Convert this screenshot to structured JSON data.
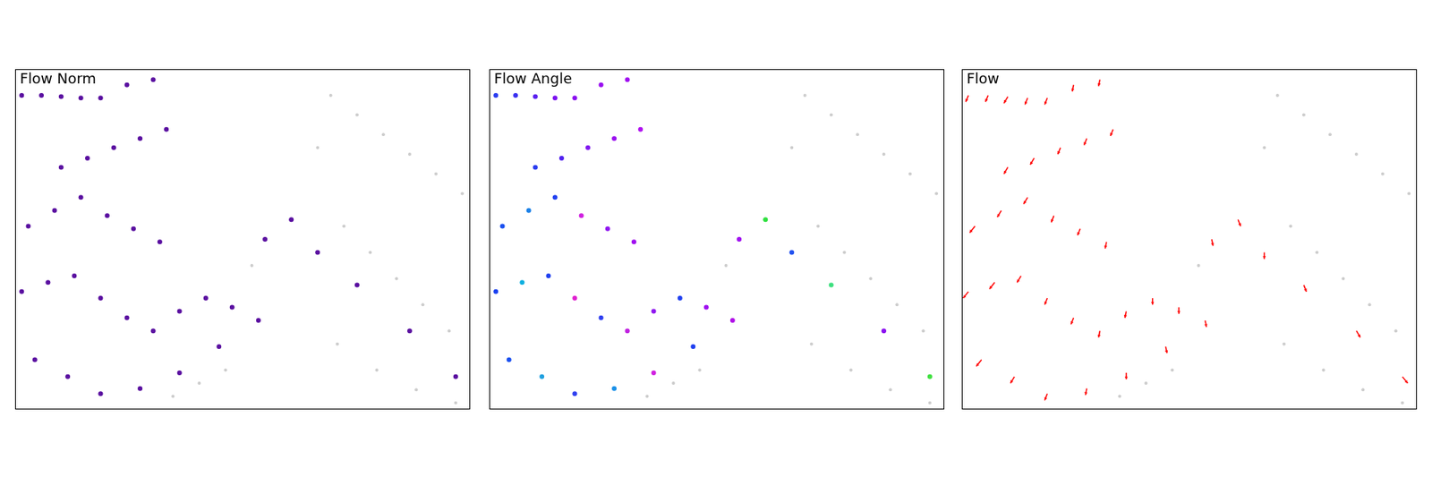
{
  "chart_data": [
    {
      "type": "scatter",
      "title": "Flow Norm",
      "xlim": [
        0,
        346
      ],
      "ylim": [
        260,
        0
      ],
      "tick_labels": false,
      "background": {
        "color": "#cccccc",
        "x": [
          240,
          260,
          280,
          300,
          320,
          340,
          250,
          270,
          290,
          310,
          330,
          245,
          275,
          305,
          335,
          230,
          180,
          160,
          140,
          120
        ],
        "y": [
          20,
          35,
          50,
          65,
          80,
          95,
          120,
          140,
          160,
          180,
          200,
          210,
          230,
          245,
          255,
          60,
          150,
          230,
          240,
          250
        ]
      },
      "flow": {
        "marker": "circle",
        "color": "#5a10a0",
        "x": [
          5,
          20,
          35,
          50,
          65,
          85,
          105,
          35,
          55,
          75,
          95,
          115,
          10,
          30,
          50,
          70,
          90,
          110,
          5,
          25,
          45,
          65,
          85,
          105,
          125,
          145,
          165,
          185,
          15,
          40,
          65,
          95,
          125,
          155,
          190,
          210,
          230,
          260,
          300,
          335
        ],
        "y": [
          20,
          20,
          21,
          22,
          22,
          12,
          8,
          75,
          68,
          60,
          53,
          46,
          120,
          108,
          98,
          112,
          122,
          132,
          170,
          163,
          158,
          175,
          190,
          200,
          185,
          175,
          182,
          192,
          222,
          235,
          248,
          244,
          232,
          212,
          130,
          115,
          140,
          165,
          200,
          235
        ]
      }
    },
    {
      "type": "scatter",
      "title": "Flow Angle",
      "xlim": [
        0,
        346
      ],
      "ylim": [
        260,
        0
      ],
      "tick_labels": false,
      "background": {
        "color": "#cccccc",
        "x": [
          240,
          260,
          280,
          300,
          320,
          340,
          250,
          270,
          290,
          310,
          330,
          245,
          275,
          305,
          335,
          230,
          180,
          160,
          140,
          120
        ],
        "y": [
          20,
          35,
          50,
          65,
          80,
          95,
          120,
          140,
          160,
          180,
          200,
          210,
          230,
          245,
          255,
          60,
          150,
          230,
          240,
          250
        ]
      },
      "flow": {
        "marker": "circle",
        "x": [
          5,
          20,
          35,
          50,
          65,
          85,
          105,
          35,
          55,
          75,
          95,
          115,
          10,
          30,
          50,
          70,
          90,
          110,
          5,
          25,
          45,
          65,
          85,
          105,
          125,
          145,
          165,
          185,
          15,
          40,
          65,
          95,
          125,
          155,
          190,
          210,
          230,
          260,
          300,
          335
        ],
        "y": [
          20,
          20,
          21,
          22,
          22,
          12,
          8,
          75,
          68,
          60,
          53,
          46,
          120,
          108,
          98,
          112,
          122,
          132,
          170,
          163,
          158,
          175,
          190,
          200,
          185,
          175,
          182,
          192,
          222,
          235,
          248,
          244,
          232,
          212,
          130,
          115,
          140,
          165,
          200,
          235
        ],
        "colors": [
          "#2a3cf0",
          "#3a30f0",
          "#5a20f0",
          "#7a10f0",
          "#8a10f0",
          "#9a10f0",
          "#a010f0",
          "#2a3cf0",
          "#5020f0",
          "#8018f0",
          "#9a10f0",
          "#b010f0",
          "#1a50f0",
          "#1a80e8",
          "#2040f0",
          "#d020e0",
          "#9018f0",
          "#a010f0",
          "#1a40f0",
          "#10b0e0",
          "#2040f0",
          "#e020d0",
          "#3040f0",
          "#c020e0",
          "#9018f0",
          "#2040f0",
          "#a010f0",
          "#b010e8",
          "#1a50f0",
          "#20a0e0",
          "#3040f0",
          "#1a90e8",
          "#d020e0",
          "#2040f0",
          "#a010f0",
          "#30e040",
          "#2050f0",
          "#40e080",
          "#8a10f0",
          "#40e040"
        ]
      }
    },
    {
      "type": "scatter",
      "title": "Flow",
      "xlim": [
        0,
        346
      ],
      "ylim": [
        260,
        0
      ],
      "tick_labels": false,
      "background": {
        "color": "#cccccc",
        "x": [
          240,
          260,
          280,
          300,
          320,
          340,
          250,
          270,
          290,
          310,
          330,
          245,
          275,
          305,
          335,
          230,
          180,
          160,
          140,
          120
        ],
        "y": [
          20,
          35,
          50,
          65,
          80,
          95,
          120,
          140,
          160,
          180,
          200,
          210,
          230,
          245,
          255,
          60,
          150,
          230,
          240,
          250
        ]
      },
      "flow": {
        "marker": "arrow",
        "color": "#ff0000",
        "x": [
          5,
          20,
          35,
          50,
          65,
          85,
          105,
          35,
          55,
          75,
          95,
          115,
          10,
          30,
          50,
          70,
          90,
          110,
          5,
          25,
          45,
          65,
          85,
          105,
          125,
          145,
          165,
          185,
          15,
          40,
          65,
          95,
          125,
          155,
          190,
          210,
          230,
          260,
          300,
          335
        ],
        "y": [
          20,
          20,
          21,
          22,
          22,
          12,
          8,
          75,
          68,
          60,
          53,
          46,
          120,
          108,
          98,
          112,
          122,
          132,
          170,
          163,
          158,
          175,
          190,
          200,
          185,
          175,
          182,
          192,
          222,
          235,
          248,
          244,
          232,
          212,
          130,
          115,
          140,
          165,
          200,
          235
        ],
        "u": [
          -2,
          -2,
          -3,
          -2,
          -2,
          -1,
          -1,
          -3,
          -3,
          -2,
          -2,
          -2,
          -4,
          -3,
          -3,
          -2,
          -2,
          -1,
          -4,
          -4,
          -3,
          -2,
          -2,
          -1,
          -1,
          0,
          0,
          1,
          -4,
          -3,
          -2,
          -1,
          0,
          1,
          1,
          2,
          0,
          2,
          3,
          4
        ],
        "v": [
          5,
          5,
          5,
          5,
          5,
          5,
          5,
          5,
          5,
          5,
          5,
          5,
          5,
          5,
          5,
          5,
          5,
          5,
          5,
          5,
          5,
          5,
          5,
          5,
          5,
          5,
          5,
          5,
          5,
          5,
          5,
          5,
          5,
          5,
          5,
          5,
          5,
          5,
          5,
          5
        ]
      }
    }
  ]
}
